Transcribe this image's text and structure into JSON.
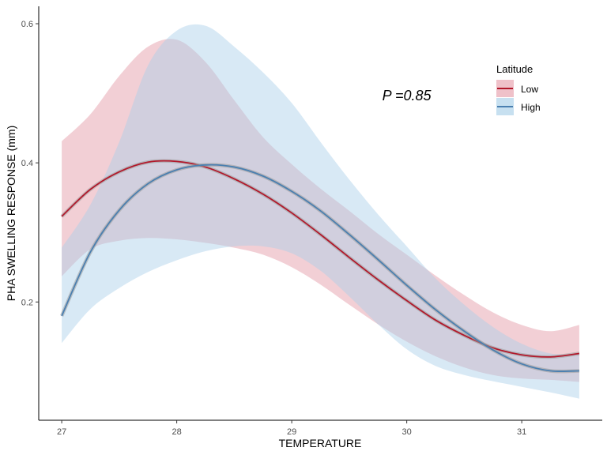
{
  "chart_data": {
    "type": "line",
    "xlabel": "TEMPERATURE",
    "ylabel": "PHA SWELLING RESPONSE (mm)",
    "xlim": [
      26.8,
      31.7
    ],
    "ylim": [
      0.03,
      0.625
    ],
    "x_ticks": [
      27,
      28,
      29,
      30,
      31
    ],
    "y_ticks": [
      0.2,
      0.4,
      0.6
    ],
    "x_tick_labels": [
      "27",
      "28",
      "29",
      "30",
      "31"
    ],
    "y_tick_labels": [
      "0.2",
      "0.4",
      "0.6"
    ],
    "grid": false,
    "legend": {
      "title": "Latitude",
      "position": "top-right"
    },
    "annotation": {
      "text": "P =0.85",
      "x": 30.0,
      "y": 0.49
    },
    "series": [
      {
        "name": "Low",
        "color": "#b2182b",
        "fill": "#e6a0ac",
        "x": [
          27.0,
          27.25,
          27.5,
          27.75,
          28.0,
          28.25,
          28.5,
          28.75,
          29.0,
          29.25,
          29.5,
          29.75,
          30.0,
          30.25,
          30.5,
          30.75,
          31.0,
          31.25,
          31.5
        ],
        "y": [
          0.323,
          0.362,
          0.387,
          0.401,
          0.402,
          0.394,
          0.377,
          0.355,
          0.328,
          0.297,
          0.264,
          0.232,
          0.202,
          0.174,
          0.152,
          0.134,
          0.124,
          0.121,
          0.126
        ],
        "lower": [
          0.237,
          0.276,
          0.288,
          0.292,
          0.29,
          0.285,
          0.278,
          0.268,
          0.25,
          0.225,
          0.196,
          0.168,
          0.143,
          0.122,
          0.106,
          0.095,
          0.09,
          0.088,
          0.085
        ],
        "upper": [
          0.431,
          0.47,
          0.525,
          0.567,
          0.577,
          0.545,
          0.49,
          0.437,
          0.398,
          0.363,
          0.331,
          0.298,
          0.268,
          0.238,
          0.21,
          0.185,
          0.167,
          0.158,
          0.167
        ]
      },
      {
        "name": "High",
        "color": "#4a7fb0",
        "fill": "#a9cfe8",
        "x": [
          27.0,
          27.25,
          27.5,
          27.75,
          28.0,
          28.25,
          28.5,
          28.75,
          29.0,
          29.25,
          29.5,
          29.75,
          30.0,
          30.25,
          30.5,
          30.75,
          31.0,
          31.25,
          31.5
        ],
        "y": [
          0.18,
          0.272,
          0.332,
          0.37,
          0.39,
          0.397,
          0.394,
          0.381,
          0.359,
          0.331,
          0.297,
          0.261,
          0.224,
          0.189,
          0.158,
          0.131,
          0.111,
          0.101,
          0.101
        ],
        "lower": [
          0.141,
          0.19,
          0.22,
          0.243,
          0.26,
          0.273,
          0.28,
          0.28,
          0.27,
          0.245,
          0.208,
          0.168,
          0.132,
          0.108,
          0.095,
          0.086,
          0.078,
          0.07,
          0.061
        ],
        "upper": [
          0.278,
          0.34,
          0.43,
          0.54,
          0.59,
          0.597,
          0.567,
          0.53,
          0.486,
          0.43,
          0.376,
          0.326,
          0.28,
          0.234,
          0.196,
          0.164,
          0.14,
          0.126,
          0.125
        ]
      }
    ]
  }
}
